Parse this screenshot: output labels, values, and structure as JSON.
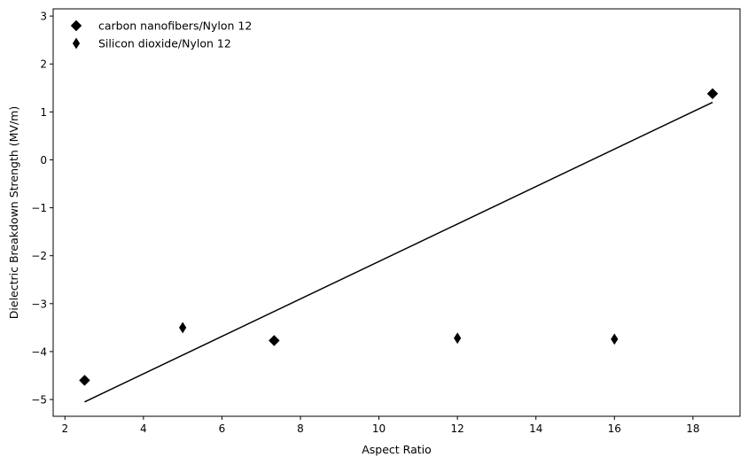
{
  "chart_data": {
    "type": "scatter",
    "title": "",
    "xlabel": "Aspect Ratio",
    "ylabel": "Dielectric Breakdown Strength (MV/m)",
    "xlim": [
      1.7,
      19.2
    ],
    "ylim": [
      -5.35,
      3.15
    ],
    "xticks": [
      2,
      4,
      6,
      8,
      10,
      12,
      14,
      16,
      18
    ],
    "yticks": [
      -5,
      -4,
      -3,
      -2,
      -1,
      0,
      1,
      2,
      3
    ],
    "ytick_labels": [
      "−5",
      "−4",
      "−3",
      "−2",
      "−1",
      "0",
      "1",
      "2",
      "3"
    ],
    "grid": false,
    "legend_position": "top-left",
    "series": [
      {
        "name": "carbon nanofibers/Nylon 12",
        "marker": "D",
        "color": "#000000",
        "points": [
          {
            "x": 2.5,
            "y": -4.6
          },
          {
            "x": 7.33,
            "y": -3.77
          },
          {
            "x": 18.5,
            "y": 1.38
          }
        ]
      },
      {
        "name": "Silicon dioxide/Nylon 12",
        "marker": "d",
        "color": "#000000",
        "points": [
          {
            "x": 5.0,
            "y": -3.5
          },
          {
            "x": 12.0,
            "y": -3.72
          },
          {
            "x": 16.0,
            "y": -3.74
          }
        ]
      }
    ],
    "fit_line": {
      "color": "#000000",
      "points": [
        {
          "x": 2.5,
          "y": -5.05
        },
        {
          "x": 18.5,
          "y": 1.2
        }
      ]
    }
  }
}
